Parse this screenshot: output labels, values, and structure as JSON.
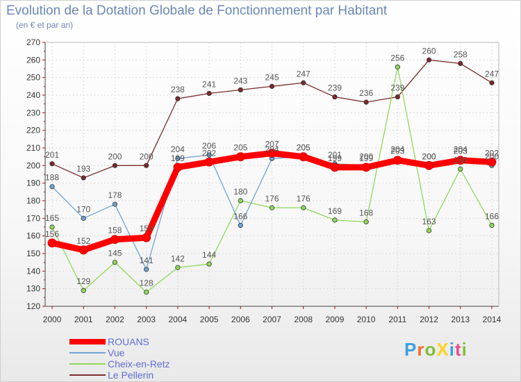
{
  "header": {
    "title": "Evolution de la Dotation Globale de Fonctionnement par Habitant",
    "subtitle": "(en € et par an)"
  },
  "logo": {
    "text": "ProXiti",
    "letter_colors": [
      "#3aa0de",
      "#f26c2b",
      "#7fbe3a",
      "#ffd21f",
      "#3aa0de",
      "#e84c8a",
      "#7fbe3a"
    ]
  },
  "chart_data": {
    "type": "line",
    "title": "Evolution de la Dotation Globale de Fonctionnement par Habitant",
    "ylabel": "(en € et par an)",
    "xlabel": "",
    "x": [
      "2000",
      "2001",
      "2002",
      "2003",
      "2004",
      "2005",
      "2006",
      "2007",
      "2008",
      "2009",
      "2010",
      "2011",
      "2012",
      "2013",
      "2014"
    ],
    "ylim": [
      120,
      270
    ],
    "yticks": [
      120,
      130,
      140,
      150,
      160,
      170,
      180,
      190,
      200,
      210,
      220,
      230,
      240,
      250,
      260,
      270
    ],
    "grid": true,
    "legend_position": "bottom-left",
    "series": [
      {
        "name": "ROUANS",
        "color": "#ff0000",
        "values": [
          156,
          152,
          158,
          159,
          199,
          202,
          205,
          207,
          205,
          199,
          199,
          203,
          200,
          203,
          202
        ]
      },
      {
        "name": "Vue",
        "color": "#6fa3d6",
        "values": [
          188,
          170,
          178,
          141,
          204,
          206,
          166,
          204,
          205,
          201,
          200,
          204,
          200,
          204,
          200
        ]
      },
      {
        "name": "Cheix-en-Retz",
        "color": "#8fd85a",
        "values": [
          165,
          129,
          145,
          128,
          142,
          144,
          180,
          176,
          176,
          169,
          168,
          256,
          163,
          198,
          166
        ]
      },
      {
        "name": "Le Pellerin",
        "color": "#7a2a2a",
        "values": [
          201,
          193,
          200,
          200,
          238,
          241,
          243,
          245,
          247,
          239,
          236,
          239,
          260,
          258,
          247
        ]
      }
    ]
  }
}
